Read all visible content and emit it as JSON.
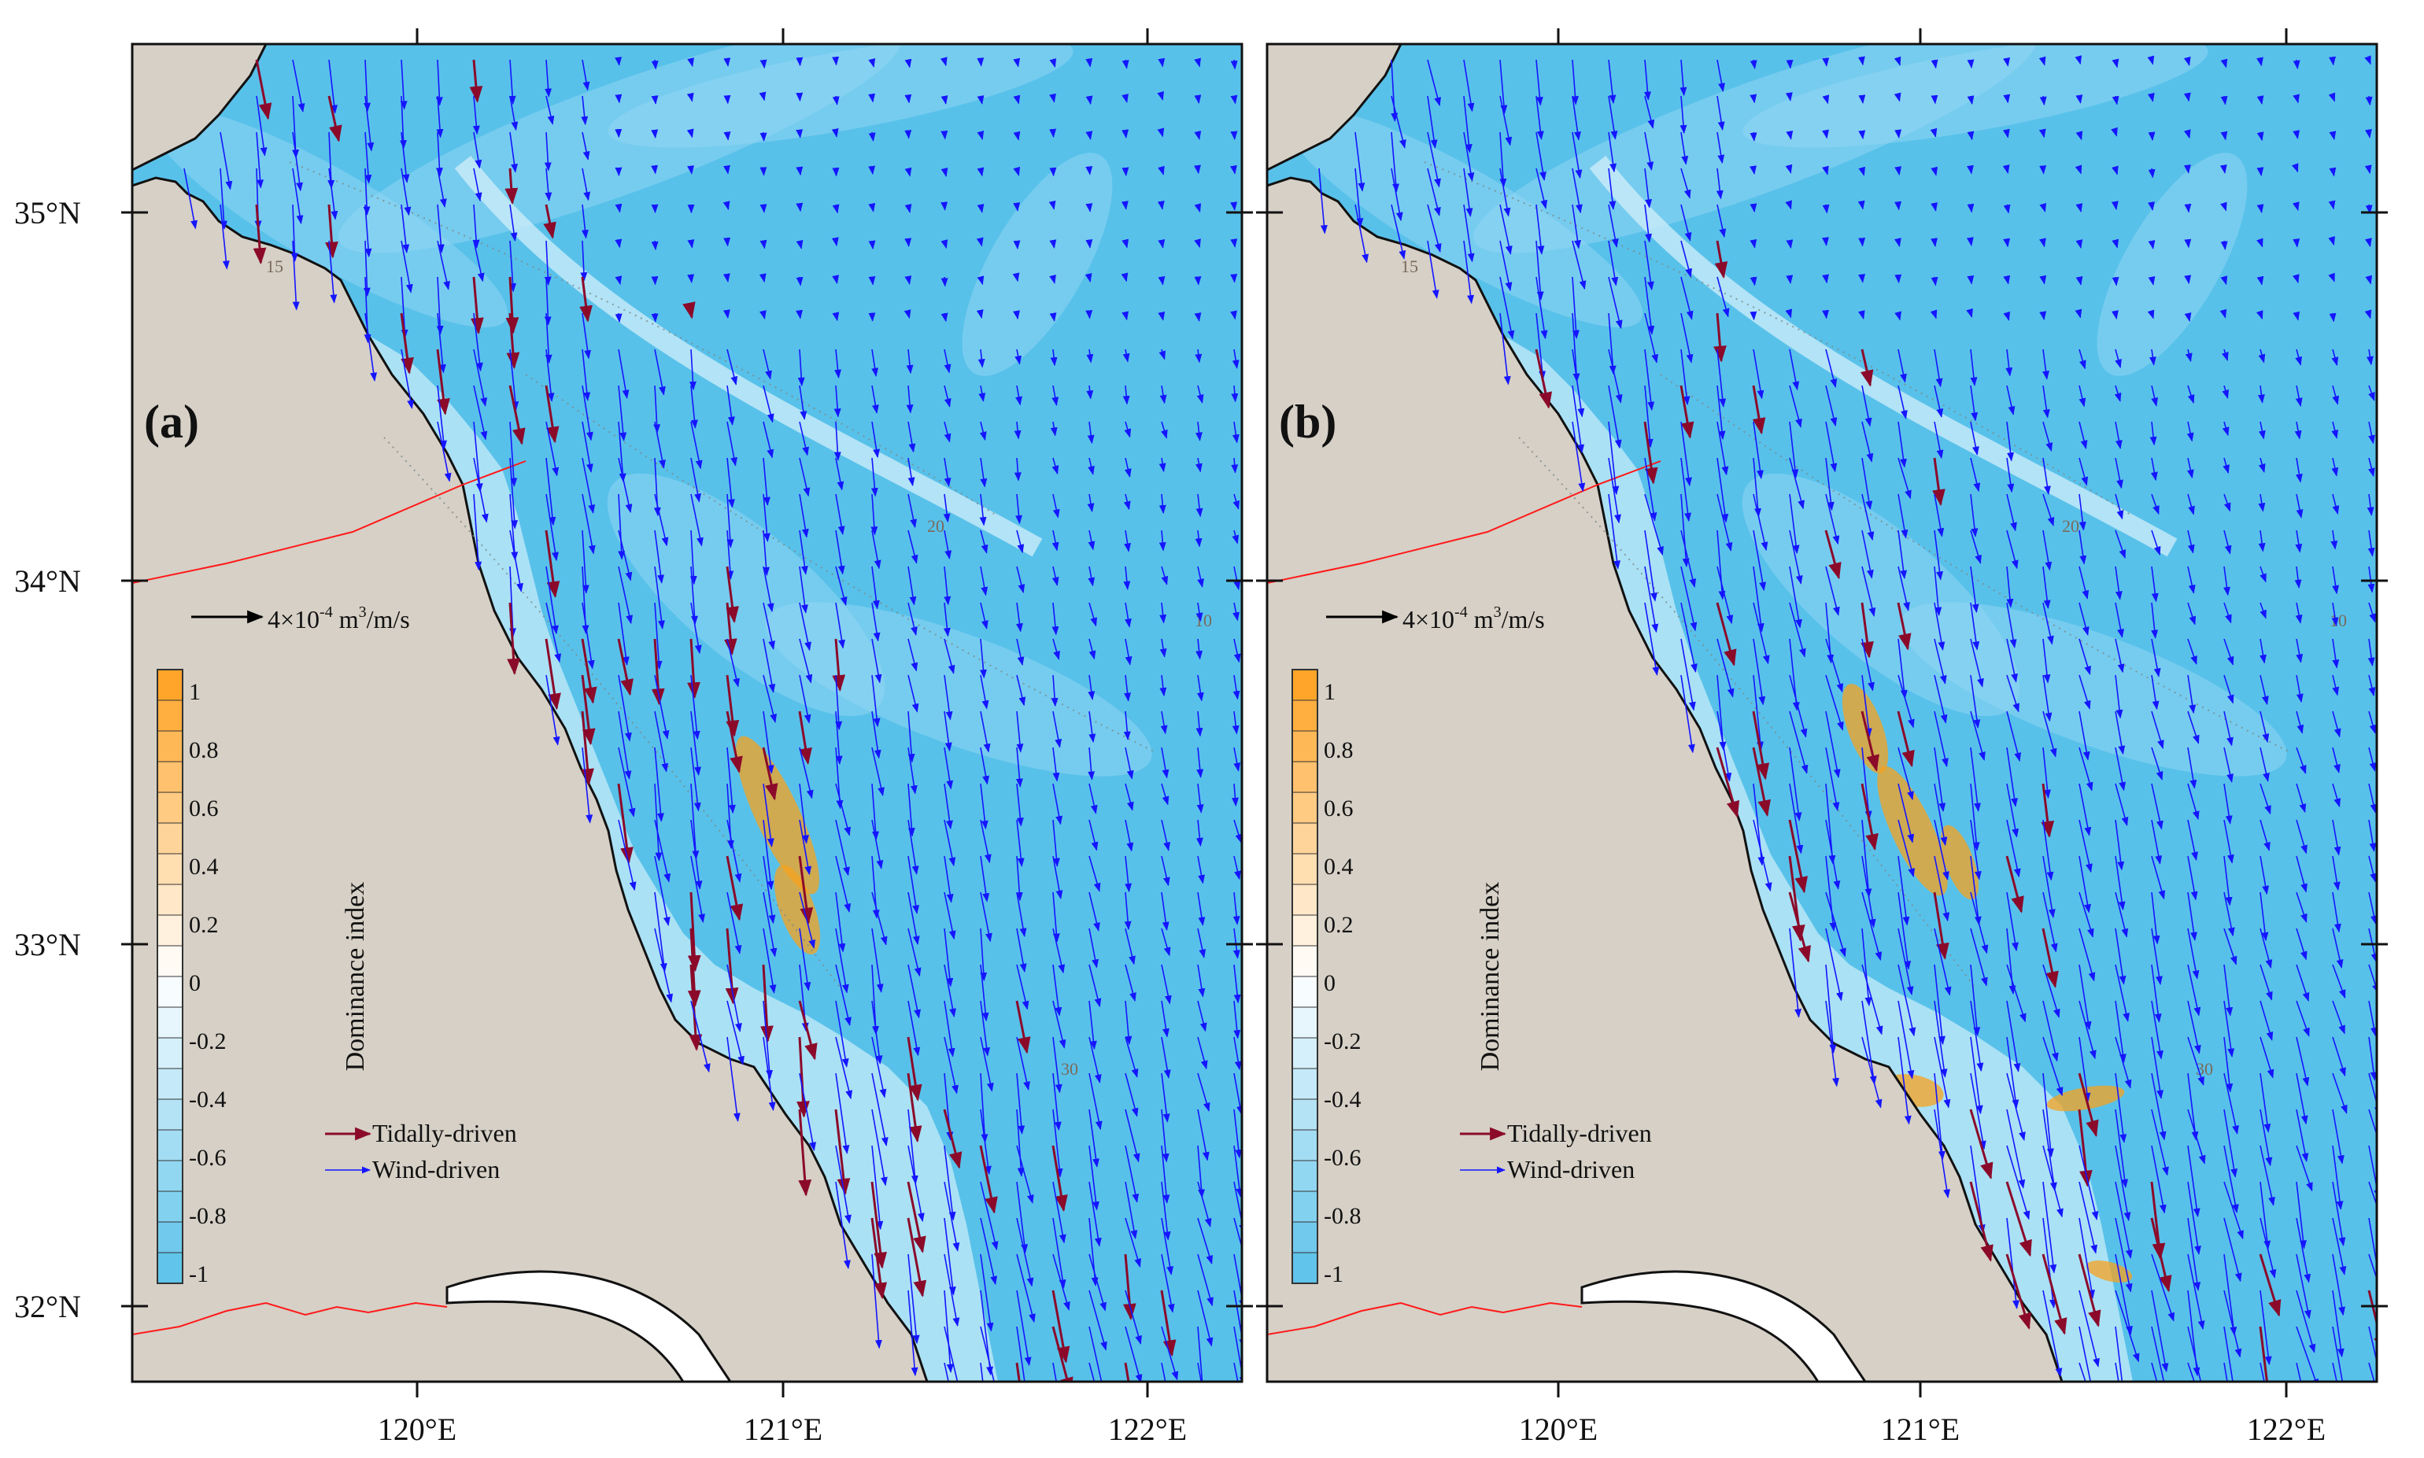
{
  "figure": {
    "panels": [
      {
        "id": "a",
        "label": "(a)",
        "scale_arrow": {
          "base": "4×10",
          "exp": "-4",
          "unit_pre": " m",
          "unit_exp": "3",
          "unit_post": "/m/s"
        },
        "colorbar": {
          "title": "Dominance index",
          "ticks": [
            "1",
            "0.8",
            "0.6",
            "0.4",
            "0.2",
            "0",
            "-0.2",
            "-0.4",
            "-0.6",
            "-0.8",
            "-1"
          ]
        },
        "legend": [
          {
            "label": "Tidally-driven",
            "color": "#8b0a2a"
          },
          {
            "label": "Wind-driven",
            "color": "#1515ff"
          }
        ]
      },
      {
        "id": "b",
        "label": "(b)",
        "scale_arrow": {
          "base": "4×10",
          "exp": "-4",
          "unit_pre": " m",
          "unit_exp": "3",
          "unit_post": "/m/s"
        },
        "colorbar": {
          "title": "Dominance index",
          "ticks": [
            "1",
            "0.8",
            "0.6",
            "0.4",
            "0.2",
            "0",
            "-0.2",
            "-0.4",
            "-0.6",
            "-0.8",
            "-1"
          ]
        },
        "legend": [
          {
            "label": "Tidally-driven",
            "color": "#8b0a2a"
          },
          {
            "label": "Wind-driven",
            "color": "#1515ff"
          }
        ]
      }
    ],
    "lat_ticks": [
      "35°N",
      "34°N",
      "33°N",
      "32°N"
    ],
    "lon_ticks": [
      "120°E",
      "121°E",
      "122°E"
    ],
    "colors": {
      "land": "#d6d0c6",
      "sea": "#58c1ea",
      "sea_light": "#8fd6f2",
      "coast": "#111111",
      "boundary": "#ff1a1a",
      "tidal_arrow": "#8b0a2a",
      "wind_arrow": "#1515ff",
      "positive_index": "#f7a21e"
    },
    "contour_labels": [
      "15",
      "20",
      "10",
      "30"
    ]
  }
}
